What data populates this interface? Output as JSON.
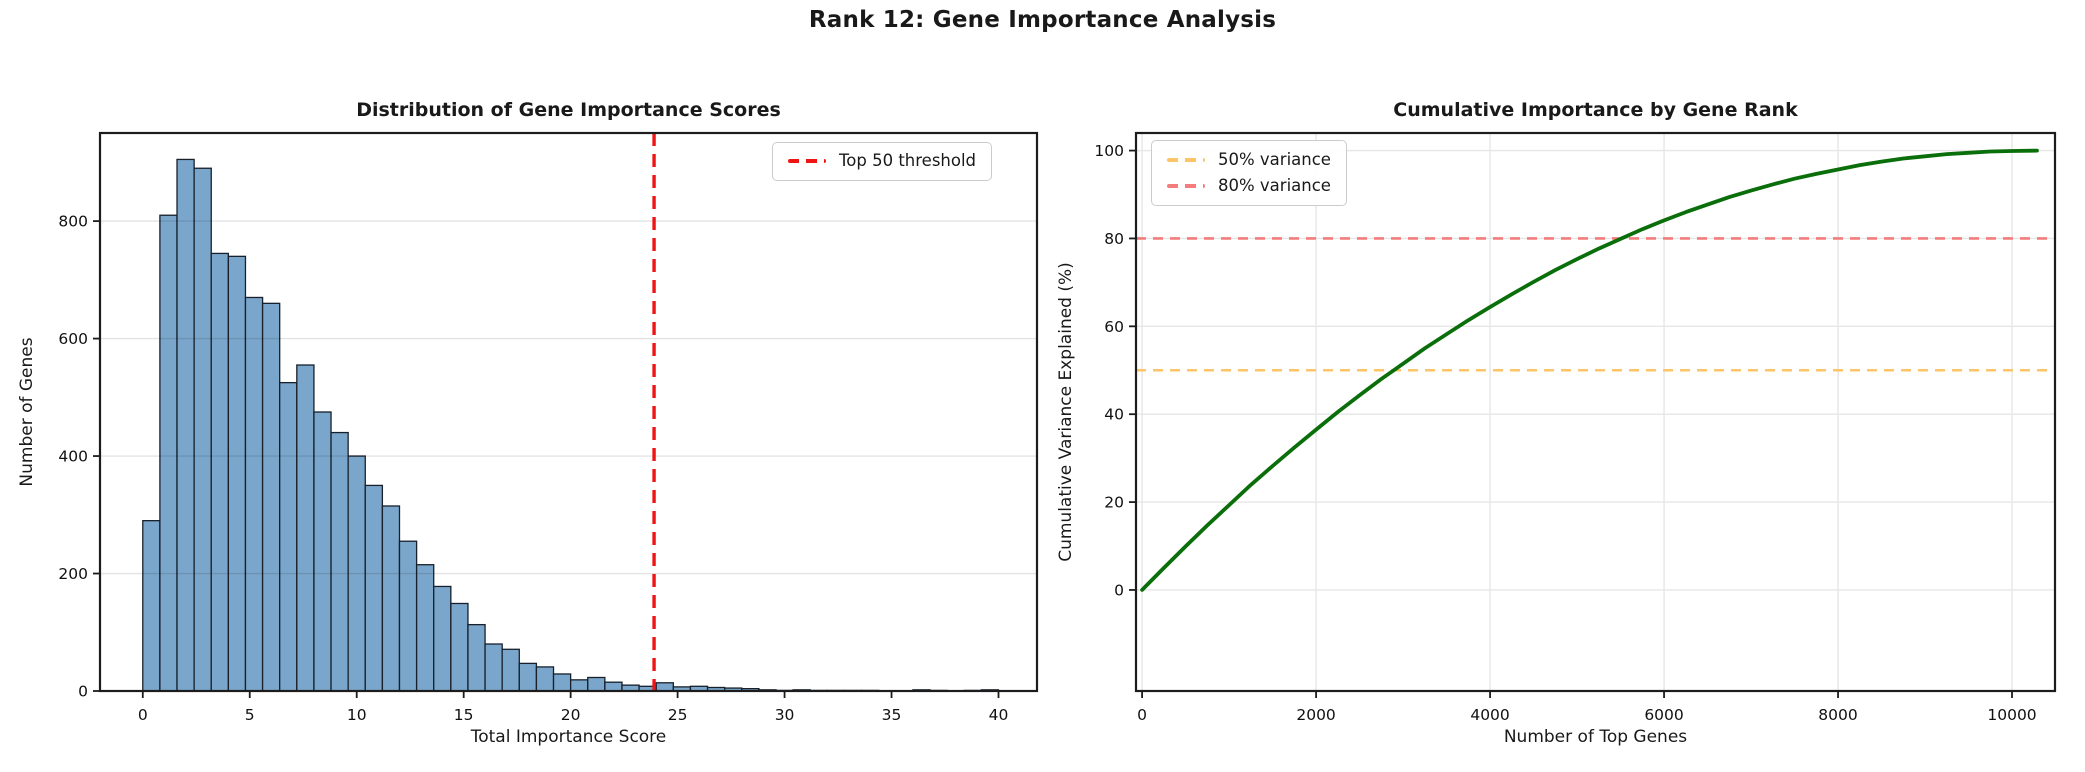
{
  "figure": {
    "suptitle": "Rank 12: Gene Importance Analysis"
  },
  "colors": {
    "bar_fill": "#7aa6cb",
    "bar_edge": "#17202b",
    "threshold_red": "#f01515",
    "curve_green": "#0a6e0a",
    "line_orange": "#fdc468",
    "line_salmon": "#f47c7c",
    "grid": "#e6e6e6",
    "grid_overlay": "rgba(0,0,0,0.11)",
    "spine": "#1c1c1c",
    "text": "#111111"
  },
  "chart_data": [
    {
      "type": "bar",
      "kind": "histogram",
      "title": "Distribution of Gene Importance Scores",
      "xlabel": "Total Importance Score",
      "ylabel": "Number of Genes",
      "bin_start": 0,
      "bin_width": 0.8,
      "counts": [
        290,
        810,
        905,
        890,
        745,
        740,
        670,
        660,
        525,
        555,
        475,
        440,
        400,
        350,
        315,
        255,
        215,
        178,
        149,
        113,
        80,
        71,
        47,
        41,
        29,
        19,
        23,
        15,
        10,
        8,
        14,
        7,
        8,
        6,
        5,
        4,
        2,
        1,
        2,
        1,
        1,
        1,
        1,
        0,
        0,
        2,
        1,
        0,
        1,
        2,
        0
      ],
      "xticks": [
        0,
        5,
        10,
        15,
        20,
        25,
        30,
        35,
        40
      ],
      "yticks": [
        0,
        200,
        400,
        600,
        800
      ],
      "xlim": [
        -2.0,
        41.8
      ],
      "ylim": [
        0,
        950
      ],
      "grid": "y",
      "grid_above_bars": true,
      "vline": {
        "x": 23.9,
        "label": "Top 50 threshold"
      },
      "legend": [
        {
          "label": "Top 50 threshold",
          "color_key": "threshold_red"
        }
      ],
      "legend_position": "upper right"
    },
    {
      "type": "line",
      "title": "Cumulative Importance by Gene Rank",
      "xlabel": "Number of Top Genes",
      "ylabel": "Cumulative Variance Explained (%)",
      "points": [
        [
          0,
          0
        ],
        [
          250,
          5.0
        ],
        [
          500,
          9.9
        ],
        [
          750,
          14.7
        ],
        [
          1000,
          19.3
        ],
        [
          1250,
          23.9
        ],
        [
          1500,
          28.2
        ],
        [
          1750,
          32.4
        ],
        [
          2000,
          36.5
        ],
        [
          2250,
          40.5
        ],
        [
          2500,
          44.3
        ],
        [
          2750,
          48.0
        ],
        [
          3000,
          51.5
        ],
        [
          3250,
          55.0
        ],
        [
          3500,
          58.2
        ],
        [
          3750,
          61.4
        ],
        [
          4000,
          64.4
        ],
        [
          4250,
          67.3
        ],
        [
          4500,
          70.1
        ],
        [
          4750,
          72.8
        ],
        [
          5000,
          75.3
        ],
        [
          5250,
          77.7
        ],
        [
          5500,
          79.9
        ],
        [
          5750,
          82.1
        ],
        [
          6000,
          84.1
        ],
        [
          6250,
          86.0
        ],
        [
          6500,
          87.7
        ],
        [
          6750,
          89.4
        ],
        [
          7000,
          90.9
        ],
        [
          7250,
          92.3
        ],
        [
          7500,
          93.6
        ],
        [
          7750,
          94.7
        ],
        [
          8000,
          95.7
        ],
        [
          8250,
          96.7
        ],
        [
          8500,
          97.5
        ],
        [
          8750,
          98.2
        ],
        [
          9000,
          98.7
        ],
        [
          9250,
          99.2
        ],
        [
          9500,
          99.5
        ],
        [
          9750,
          99.8
        ],
        [
          10000,
          99.9
        ],
        [
          10287,
          100
        ]
      ],
      "xticks": [
        0,
        2000,
        4000,
        6000,
        8000,
        10000
      ],
      "yticks": [
        0,
        20,
        40,
        60,
        80,
        100
      ],
      "xlim": [
        -70,
        10494
      ],
      "ylim": [
        -23,
        104
      ],
      "grid": "both",
      "hlines": [
        {
          "y": 50,
          "label": "50% variance",
          "color_key": "line_orange"
        },
        {
          "y": 80,
          "label": "80% variance",
          "color_key": "line_salmon"
        }
      ],
      "legend": [
        {
          "label": "50% variance",
          "color_key": "line_orange"
        },
        {
          "label": "80% variance",
          "color_key": "line_salmon"
        }
      ],
      "legend_position": "upper left"
    }
  ]
}
